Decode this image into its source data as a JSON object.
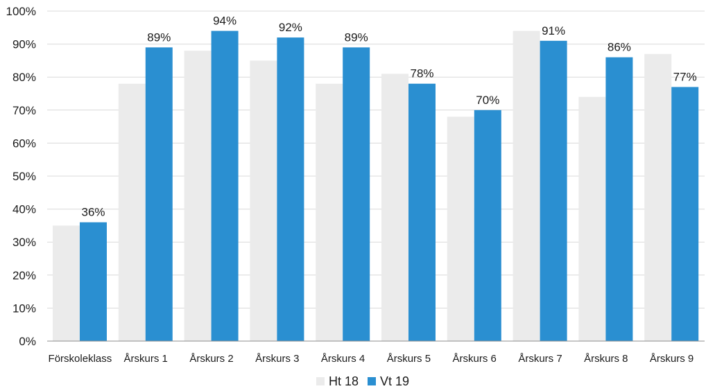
{
  "chart_data": {
    "type": "bar",
    "categories": [
      "Förskoleklass",
      "Årskurs 1",
      "Årskurs 2",
      "Årskurs 3",
      "Årskurs 4",
      "Årskurs 5",
      "Årskurs 6",
      "Årskurs 7",
      "Årskurs 8",
      "Årskurs 9"
    ],
    "series": [
      {
        "name": "Ht 18",
        "color": "#ebebeb",
        "values": [
          35,
          78,
          88,
          85,
          78,
          81,
          68,
          94,
          74,
          87
        ],
        "show_labels": false
      },
      {
        "name": "Vt 19",
        "color": "#2a8fd1",
        "values": [
          36,
          89,
          94,
          92,
          89,
          78,
          70,
          91,
          86,
          77
        ],
        "show_labels": true
      }
    ],
    "y_ticks": [
      "0%",
      "10%",
      "20%",
      "30%",
      "40%",
      "50%",
      "60%",
      "70%",
      "80%",
      "90%",
      "100%"
    ],
    "ylim": [
      0,
      100
    ],
    "y_unit": "%",
    "grid": true,
    "legend_position": "bottom",
    "title": "",
    "xlabel": "",
    "ylabel": ""
  }
}
